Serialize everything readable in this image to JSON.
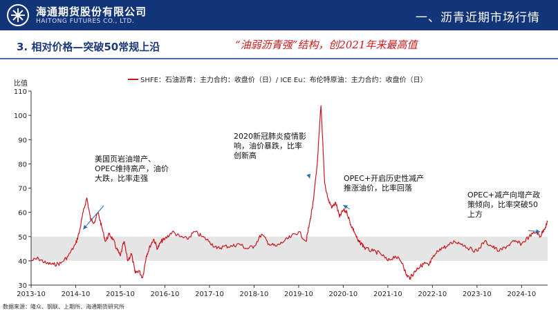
{
  "header": {
    "brand_cn": "海通期货股份有限公司",
    "brand_en": "HAITONG FUTURES CO., LTD.",
    "section_title": "一、沥青近期市场行情"
  },
  "slide": {
    "subtitle": "3. 相对价格—突破50常规上沿",
    "headline": "“油弱沥青强”结构，创2021年来最高值",
    "source": "数据来源：隆众、钢联、上期所、海通期货研究所"
  },
  "colors": {
    "header_bg": "#12357a",
    "series": "#c8161d",
    "band": "#e5e5e5",
    "headline": "#d01919",
    "arrow": "#2f6db5"
  },
  "chart_data": {
    "type": "line",
    "title": "",
    "ylabel": "比值",
    "xlabel": "",
    "ylim": [
      30,
      110
    ],
    "yticks": [
      30,
      40,
      50,
      60,
      70,
      80,
      90,
      100,
      110
    ],
    "xticks": [
      "2013-10",
      "2014-10",
      "2015-10",
      "2016-10",
      "2017-10",
      "2018-10",
      "2019-10",
      "2020-10",
      "2021-10",
      "2022-10",
      "2023-10",
      "2024-10"
    ],
    "xrange": [
      "2013-10",
      "2025-05"
    ],
    "band": [
      40,
      50
    ],
    "legend": "top",
    "series": [
      {
        "name": "SHFE：石油沥青：主力合约：收盘价（日）/ ICE Eu：布伦特原油：主力合约：收盘价（日）",
        "points": [
          [
            "2013-10",
            40
          ],
          [
            "2013-12",
            41
          ],
          [
            "2014-02",
            39
          ],
          [
            "2014-04",
            38.5
          ],
          [
            "2014-06",
            39
          ],
          [
            "2014-08",
            42
          ],
          [
            "2014-10",
            47
          ],
          [
            "2014-11",
            52
          ],
          [
            "2014-12",
            60
          ],
          [
            "2015-01",
            66
          ],
          [
            "2015-02",
            57
          ],
          [
            "2015-03",
            56
          ],
          [
            "2015-04",
            60
          ],
          [
            "2015-05",
            54
          ],
          [
            "2015-06",
            48
          ],
          [
            "2015-07",
            51
          ],
          [
            "2015-08",
            49
          ],
          [
            "2015-09",
            45
          ],
          [
            "2015-10",
            42
          ],
          [
            "2015-11",
            48
          ],
          [
            "2015-12",
            40
          ],
          [
            "2016-01",
            43
          ],
          [
            "2016-02",
            35
          ],
          [
            "2016-03",
            36
          ],
          [
            "2016-04",
            33
          ],
          [
            "2016-05",
            42
          ],
          [
            "2016-06",
            46
          ],
          [
            "2016-07",
            49
          ],
          [
            "2016-08",
            45
          ],
          [
            "2016-09",
            48
          ],
          [
            "2016-10",
            49
          ],
          [
            "2016-12",
            52
          ],
          [
            "2017-02",
            50
          ],
          [
            "2017-04",
            49
          ],
          [
            "2017-06",
            52
          ],
          [
            "2017-08",
            50
          ],
          [
            "2017-10",
            48
          ],
          [
            "2017-12",
            45
          ],
          [
            "2018-02",
            46
          ],
          [
            "2018-04",
            46
          ],
          [
            "2018-06",
            47
          ],
          [
            "2018-08",
            45
          ],
          [
            "2018-10",
            46
          ],
          [
            "2018-12",
            51
          ],
          [
            "2019-02",
            47
          ],
          [
            "2019-04",
            46
          ],
          [
            "2019-06",
            48
          ],
          [
            "2019-08",
            50
          ],
          [
            "2019-10",
            52
          ],
          [
            "2019-12",
            48
          ],
          [
            "2020-01",
            56
          ],
          [
            "2020-02",
            65
          ],
          [
            "2020-03",
            80
          ],
          [
            "2020-04",
            104
          ],
          [
            "2020-05",
            72
          ],
          [
            "2020-06",
            65
          ],
          [
            "2020-07",
            62
          ],
          [
            "2020-08",
            64
          ],
          [
            "2020-09",
            58
          ],
          [
            "2020-10",
            61
          ],
          [
            "2020-11",
            60
          ],
          [
            "2020-12",
            55
          ],
          [
            "2021-01",
            52
          ],
          [
            "2021-02",
            48
          ],
          [
            "2021-03",
            47
          ],
          [
            "2021-04",
            45
          ],
          [
            "2021-06",
            44
          ],
          [
            "2021-08",
            43
          ],
          [
            "2021-10",
            40
          ],
          [
            "2021-12",
            42
          ],
          [
            "2022-02",
            39
          ],
          [
            "2022-03",
            34
          ],
          [
            "2022-04",
            33
          ],
          [
            "2022-05",
            35
          ],
          [
            "2022-06",
            37
          ],
          [
            "2022-07",
            38
          ],
          [
            "2022-08",
            39
          ],
          [
            "2022-09",
            38
          ],
          [
            "2022-10",
            41
          ],
          [
            "2022-12",
            45
          ],
          [
            "2023-02",
            46
          ],
          [
            "2023-04",
            48
          ],
          [
            "2023-06",
            47
          ],
          [
            "2023-08",
            45
          ],
          [
            "2023-10",
            44
          ],
          [
            "2023-12",
            48
          ],
          [
            "2024-02",
            46
          ],
          [
            "2024-04",
            44
          ],
          [
            "2024-06",
            46
          ],
          [
            "2024-08",
            48
          ],
          [
            "2024-10",
            47
          ],
          [
            "2024-12",
            50
          ],
          [
            "2025-02",
            52
          ],
          [
            "2025-03",
            50
          ],
          [
            "2025-04",
            53
          ],
          [
            "2025-05",
            56
          ]
        ]
      }
    ],
    "annotations": [
      {
        "text": [
          "美国页岩油增产、",
          "OPEC维持高产，油价",
          "大跌，比率走强"
        ],
        "date": "2014-11",
        "arrow_to": [
          "2014-12",
          53
        ]
      },
      {
        "text": [
          "2020新冠肺炎疫情影",
          "响，油价暴跌，比率",
          "创新高"
        ],
        "date": "2018-10",
        "arrow_to": [
          "2020-01",
          74
        ]
      },
      {
        "text": [
          "OPEC+开启历史性减产",
          "推涨油价，比率回落"
        ],
        "date": "2020-09",
        "arrow_to": [
          "2020-10",
          63
        ]
      },
      {
        "text": [
          "OPEC+减产向增产政",
          "策倾向，比率突破50",
          "上方"
        ],
        "date": "2023-12",
        "arrow_to": [
          "2025-03",
          52
        ]
      }
    ]
  }
}
